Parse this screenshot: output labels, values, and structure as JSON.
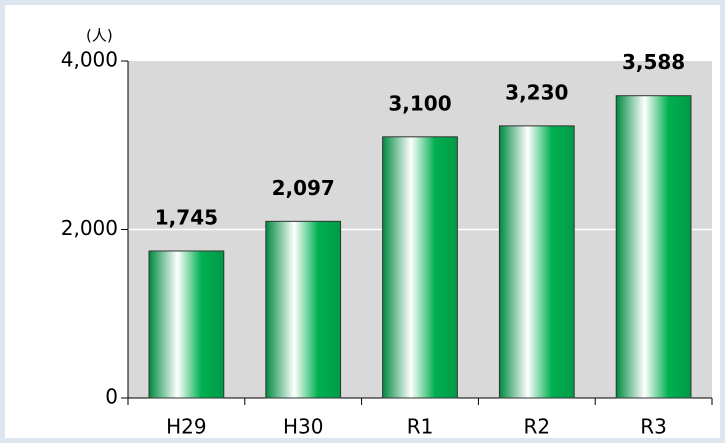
{
  "chart_data": {
    "type": "bar",
    "y_unit": "(人)",
    "categories": [
      "H29",
      "H30",
      "R1",
      "R2",
      "R3"
    ],
    "values": [
      1745,
      2097,
      3100,
      3230,
      3588
    ],
    "value_labels": [
      "1,745",
      "2,097",
      "3,100",
      "3,230",
      "3,588"
    ],
    "color": "#00b050",
    "ylim": [
      0,
      4000
    ],
    "yticks": [
      0,
      {
        "value": 2000,
        "label": "2,000"
      },
      {
        "value": 4000,
        "label": "4,000"
      }
    ],
    "grid": true
  }
}
